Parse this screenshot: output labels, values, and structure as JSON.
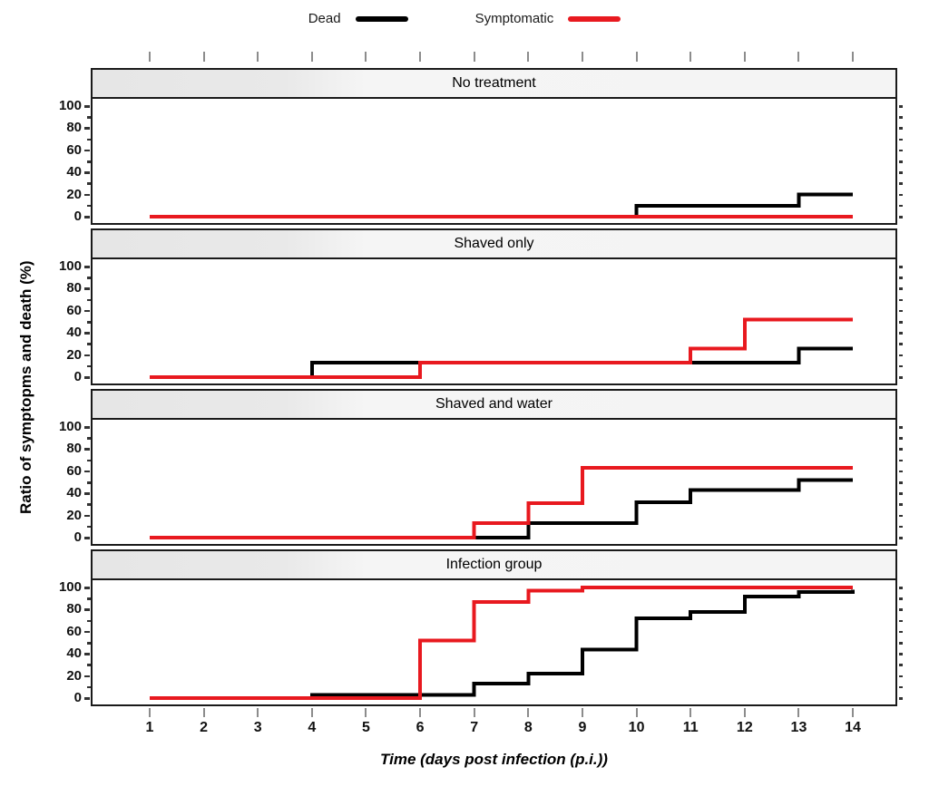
{
  "figure": {
    "background": "#ffffff",
    "panel_border_color": "#1a1a1a",
    "strip_background": "#f0f0f0",
    "tick_color": "#8c8c8c",
    "axis_tick_color": "#333333"
  },
  "legend": {
    "items": [
      {
        "label": "Dead",
        "color": "#000000"
      },
      {
        "label": "Symptomatic",
        "color": "#e8191f"
      }
    ]
  },
  "axes": {
    "x": {
      "label": "Time (days post infection (p.i.))",
      "min": 1,
      "max": 14,
      "ticks": [
        1,
        2,
        3,
        4,
        5,
        6,
        7,
        8,
        9,
        10,
        11,
        12,
        13,
        14
      ]
    },
    "y": {
      "label": "Ratio of symptopms and death (%)",
      "min": 0,
      "max": 100,
      "ticks": [
        0,
        20,
        40,
        60,
        80,
        100
      ],
      "minor_step": 10
    }
  },
  "chart_data": {
    "type": "line",
    "style": "step-after",
    "xlabel": "Time (days post infection (p.i.))",
    "ylabel": "Ratio of symptopms and death (%)",
    "xlim": [
      1,
      14
    ],
    "ylim": [
      0,
      100
    ],
    "grid": false,
    "legend_position": "top",
    "facets": [
      {
        "title": "No treatment",
        "series": [
          {
            "name": "Dead",
            "color": "#000000",
            "points": [
              [
                1,
                0
              ],
              [
                10,
                10
              ],
              [
                13,
                20
              ],
              [
                14,
                20
              ]
            ]
          },
          {
            "name": "Symptomatic",
            "color": "#e8191f",
            "points": [
              [
                1,
                0
              ],
              [
                14,
                0
              ]
            ]
          }
        ]
      },
      {
        "title": "Shaved only",
        "series": [
          {
            "name": "Dead",
            "color": "#000000",
            "points": [
              [
                1,
                0
              ],
              [
                4,
                13
              ],
              [
                13,
                26
              ],
              [
                14,
                26
              ]
            ]
          },
          {
            "name": "Symptomatic",
            "color": "#e8191f",
            "points": [
              [
                1,
                0
              ],
              [
                6,
                13
              ],
              [
                11,
                26
              ],
              [
                12,
                52
              ],
              [
                14,
                52
              ]
            ]
          }
        ]
      },
      {
        "title": "Shaved and water",
        "series": [
          {
            "name": "Dead",
            "color": "#000000",
            "points": [
              [
                1,
                0
              ],
              [
                8,
                13
              ],
              [
                10,
                32
              ],
              [
                11,
                43
              ],
              [
                13,
                52
              ],
              [
                14,
                52
              ]
            ]
          },
          {
            "name": "Symptomatic",
            "color": "#e8191f",
            "points": [
              [
                1,
                0
              ],
              [
                7,
                13
              ],
              [
                8,
                31
              ],
              [
                9,
                63
              ],
              [
                14,
                63
              ]
            ]
          }
        ]
      },
      {
        "title": "Infection group",
        "series": [
          {
            "name": "Dead",
            "color": "#000000",
            "points": [
              [
                1,
                0
              ],
              [
                4,
                3
              ],
              [
                7,
                13
              ],
              [
                8,
                22
              ],
              [
                9,
                44
              ],
              [
                10,
                72
              ],
              [
                11,
                78
              ],
              [
                12,
                92
              ],
              [
                13,
                96
              ],
              [
                14,
                98
              ]
            ]
          },
          {
            "name": "Symptomatic",
            "color": "#e8191f",
            "points": [
              [
                1,
                0
              ],
              [
                6,
                52
              ],
              [
                7,
                87
              ],
              [
                8,
                97
              ],
              [
                9,
                100
              ],
              [
                14,
                100
              ]
            ]
          }
        ]
      }
    ]
  }
}
